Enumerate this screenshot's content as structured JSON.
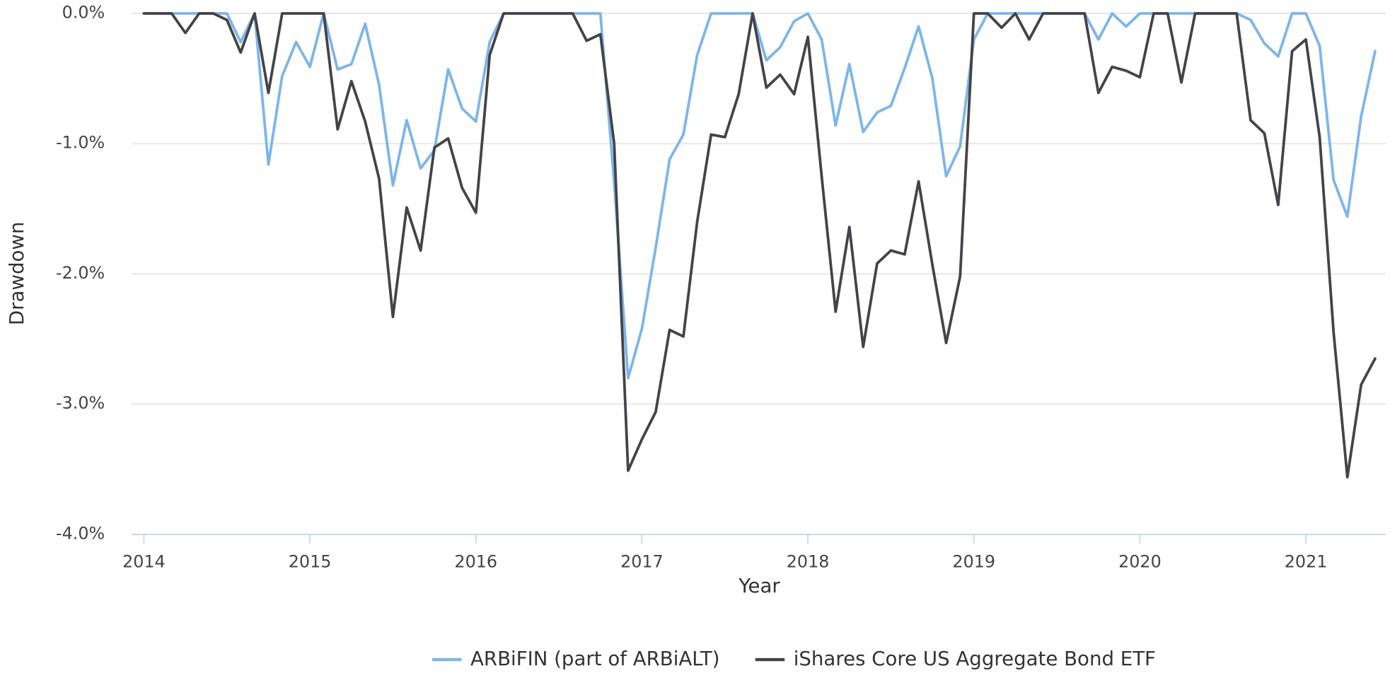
{
  "chart_data": {
    "type": "line",
    "x_label": "Year",
    "y_label": "Drawdown",
    "x": [
      2014,
      2014.083,
      2014.167,
      2014.25,
      2014.333,
      2014.417,
      2014.5,
      2014.583,
      2014.667,
      2014.75,
      2014.833,
      2014.917,
      2015,
      2015.083,
      2015.167,
      2015.25,
      2015.333,
      2015.417,
      2015.5,
      2015.583,
      2015.667,
      2015.75,
      2015.833,
      2015.917,
      2016,
      2016.083,
      2016.167,
      2016.25,
      2016.333,
      2016.417,
      2016.5,
      2016.583,
      2016.667,
      2016.75,
      2016.833,
      2016.917,
      2017,
      2017.083,
      2017.167,
      2017.25,
      2017.333,
      2017.417,
      2017.5,
      2017.583,
      2017.667,
      2017.75,
      2017.833,
      2017.917,
      2018,
      2018.083,
      2018.167,
      2018.25,
      2018.333,
      2018.417,
      2018.5,
      2018.583,
      2018.667,
      2018.75,
      2018.833,
      2018.917,
      2019,
      2019.083,
      2019.167,
      2019.25,
      2019.333,
      2019.417,
      2019.5,
      2019.583,
      2019.667,
      2019.75,
      2019.833,
      2019.917,
      2020,
      2020.083,
      2020.167,
      2020.25,
      2020.333,
      2020.417,
      2020.5,
      2020.583,
      2020.667,
      2020.75,
      2020.833,
      2020.917,
      2021,
      2021.083,
      2021.167,
      2021.25,
      2021.333,
      2021.417
    ],
    "series": [
      {
        "name": "ARBiFIN (part of ARBiALT)",
        "color": "#7cb5ec",
        "values": [
          0,
          0,
          0,
          0,
          0,
          0,
          0,
          -0.22,
          0,
          -1.16,
          -0.48,
          -0.22,
          -0.41,
          0,
          -0.43,
          -0.39,
          -0.08,
          -0.55,
          -1.32,
          -0.82,
          -1.19,
          -1.05,
          -0.43,
          -0.73,
          -0.83,
          -0.22,
          0,
          0,
          0,
          0,
          0,
          0,
          0,
          0,
          -1.3,
          -2.8,
          -2.42,
          -1.8,
          -1.12,
          -0.93,
          -0.32,
          0,
          0,
          0,
          0,
          -0.36,
          -0.26,
          -0.06,
          0,
          -0.2,
          -0.86,
          -0.39,
          -0.91,
          -0.76,
          -0.71,
          -0.42,
          -0.1,
          -0.5,
          -1.25,
          -1.02,
          -0.2,
          0,
          0,
          0,
          0,
          0,
          0,
          0,
          0,
          -0.2,
          0,
          -0.1,
          0,
          0,
          0,
          0,
          0,
          0,
          0,
          0,
          -0.05,
          -0.23,
          -0.33,
          0,
          0,
          -0.25,
          -1.28,
          -1.56,
          -0.79,
          -0.29
        ]
      },
      {
        "name": "iShares Core US Aggregate Bond ETF",
        "color": "#434348",
        "values": [
          0,
          0,
          0,
          -0.15,
          0,
          0,
          -0.05,
          -0.3,
          0,
          -0.61,
          0,
          0,
          0,
          0,
          -0.89,
          -0.52,
          -0.83,
          -1.27,
          -2.33,
          -1.49,
          -1.82,
          -1.03,
          -0.96,
          -1.34,
          -1.53,
          -0.32,
          0,
          0,
          0,
          0,
          0,
          0,
          -0.21,
          -0.16,
          -1.0,
          -3.51,
          -3.27,
          -3.06,
          -2.43,
          -2.48,
          -1.6,
          -0.93,
          -0.95,
          -0.62,
          0,
          -0.57,
          -0.47,
          -0.62,
          -0.18,
          -1.25,
          -2.29,
          -1.64,
          -2.56,
          -1.92,
          -1.82,
          -1.85,
          -1.29,
          -1.93,
          -2.53,
          -2.02,
          0,
          0,
          -0.11,
          0,
          -0.2,
          0,
          0,
          0,
          0,
          -0.61,
          -0.41,
          -0.44,
          -0.49,
          0,
          0,
          -0.53,
          0,
          0,
          0,
          0,
          -0.82,
          -0.92,
          -1.47,
          -0.29,
          -0.2,
          -0.95,
          -2.45,
          -3.56,
          -2.85,
          -2.65
        ]
      }
    ],
    "xlim": [
      2013.925,
      2021.48
    ],
    "xticks": [
      2014,
      2015,
      2016,
      2017,
      2018,
      2019,
      2020,
      2021
    ],
    "ylim": [
      -4,
      0
    ],
    "yticks": [
      {
        "value": -4,
        "label": "-4.0%"
      },
      {
        "value": -3,
        "label": "-3.0%"
      },
      {
        "value": -2,
        "label": "-2.0%"
      },
      {
        "value": -1,
        "label": "-1.0%"
      },
      {
        "value": 0,
        "label": "0.0%"
      }
    ],
    "grid": true,
    "legend": "bottom"
  }
}
